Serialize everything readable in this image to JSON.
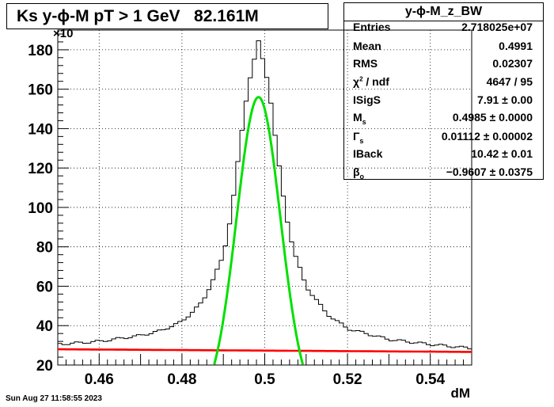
{
  "title": "Ks y-ϕ-M pT > 1 GeV   82.161M",
  "stats": {
    "name": "y-ϕ-M_z_BW",
    "rows": [
      {
        "label": "Entries",
        "sub": "",
        "sup": "",
        "label2": "",
        "value": "2.718025e+07"
      },
      {
        "label": "Mean",
        "sub": "",
        "sup": "",
        "label2": "",
        "value": "0.4991"
      },
      {
        "label": "RMS",
        "sub": "",
        "sup": "",
        "label2": "",
        "value": "0.02307"
      },
      {
        "label": "χ",
        "sub": "",
        "sup": "2",
        "label2": " / ndf",
        "value": "4647 / 95"
      },
      {
        "label": "ISigS",
        "sub": "",
        "sup": "",
        "label2": "",
        "value": "7.91 ± 0.00"
      },
      {
        "label": "M",
        "sub": "s",
        "sup": "",
        "label2": "",
        "value": "0.4985 ± 0.0000"
      },
      {
        "label": "Γ",
        "sub": "s",
        "sup": "",
        "label2": "",
        "value": "0.01112 ± 0.00002"
      },
      {
        "label": "IBack",
        "sub": "",
        "sup": "",
        "label2": "",
        "value": "10.42 ± 0.01"
      },
      {
        "label": "β",
        "sub": "o",
        "sup": "",
        "label2": "",
        "value": "−0.9607 ± 0.0375"
      }
    ]
  },
  "footer": "Sun Aug 27 11:58:55 2023",
  "chart_data": {
    "type": "line",
    "xlabel": "dM",
    "ylabel": "",
    "y_exponent": "×10",
    "xlim": [
      0.45,
      0.55
    ],
    "ylim": [
      20,
      190
    ],
    "xticks": [
      0.46,
      0.48,
      0.5,
      0.52,
      0.54
    ],
    "xtick_labels": [
      "0.46",
      "0.48",
      "0.5",
      "0.52",
      "0.54"
    ],
    "yticks": [
      20,
      40,
      60,
      80,
      100,
      120,
      140,
      160,
      180
    ],
    "ytick_labels": [
      "20",
      "40",
      "60",
      "80",
      "100",
      "120",
      "140",
      "160",
      "180"
    ],
    "grid": true,
    "params": {
      "I": 7.91,
      "M": 0.4985,
      "G": 0.01112,
      "A": 28.0,
      "beta": -0.9607
    },
    "series": [
      {
        "role": "histogram",
        "color": "#000000",
        "x": [
          0.45,
          0.46,
          0.47,
          0.475,
          0.48,
          0.485,
          0.49,
          0.492,
          0.494,
          0.496,
          0.4985,
          0.501,
          0.503,
          0.505,
          0.507,
          0.51,
          0.515,
          0.52,
          0.53,
          0.54,
          0.55
        ],
        "y": [
          30.5,
          32,
          35,
          37.5,
          42,
          52,
          75,
          98,
          131,
          162,
          184,
          162,
          128,
          98,
          78,
          60,
          46,
          38.5,
          33,
          30.5,
          28.5
        ]
      },
      {
        "role": "total-fit",
        "color": "#000000"
      },
      {
        "role": "signal",
        "color": "#00e000"
      },
      {
        "role": "background",
        "color": "#ff0000"
      }
    ]
  },
  "colors": {
    "signal": "#00e000",
    "background": "#ff0000",
    "total": "#000000"
  }
}
